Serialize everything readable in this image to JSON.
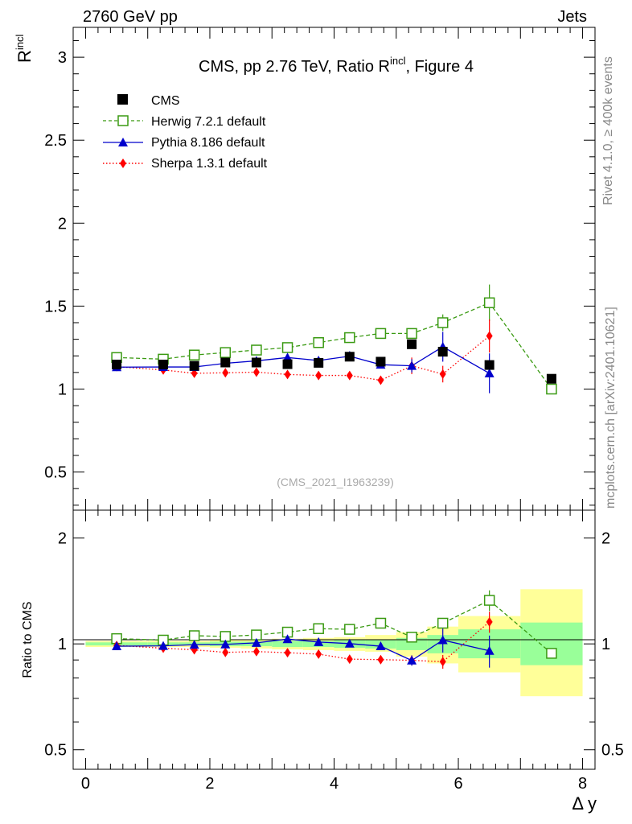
{
  "header": {
    "left": "2760 GeV pp",
    "right": "Jets"
  },
  "side_labels": {
    "rivet": "Rivet 4.1.0, ≥ 400k events",
    "mcplots": "mcplots.cern.ch [arXiv:2401.10621]"
  },
  "colors": {
    "cms": "#000000",
    "herwig": "#3a9a12",
    "pythia": "#0000cc",
    "sherpa": "#ff0000",
    "band_yellow": "#ffff99",
    "band_green": "#99ff99"
  },
  "chart_data": [
    {
      "type": "scatter",
      "panel": "main",
      "title": "CMS, pp 2.76 TeV, Ratio R",
      "title_sup": "incl",
      "title_suffix": ", Figure 4",
      "ylabel": "R",
      "ylabel_sup": "incl",
      "xlabel": "Δ y",
      "xlim": [
        -0.2,
        8.2
      ],
      "ylim": [
        0.27,
        3.18
      ],
      "yticks": [
        0.5,
        1,
        1.5,
        2,
        2.5,
        3
      ],
      "ytick_labels": [
        "0.5",
        "1",
        "1.5",
        "2",
        "2.5",
        "3"
      ],
      "watermark": "(CMS_2021_I1963239)",
      "legend_position": "top-left",
      "series": [
        {
          "name": "CMS",
          "key": "cms",
          "x": [
            0.5,
            1.25,
            1.75,
            2.25,
            2.75,
            3.25,
            3.75,
            4.25,
            4.75,
            5.25,
            5.75,
            6.5,
            7.5
          ],
          "y": [
            1.148,
            1.148,
            1.14,
            1.16,
            1.16,
            1.15,
            1.158,
            1.195,
            1.165,
            1.27,
            1.225,
            1.145,
            1.062
          ]
        },
        {
          "name": "Herwig 7.2.1 default",
          "key": "herwig",
          "x": [
            0.5,
            1.25,
            1.75,
            2.25,
            2.75,
            3.25,
            3.75,
            4.25,
            4.75,
            5.25,
            5.75,
            6.5,
            7.5
          ],
          "y": [
            1.19,
            1.18,
            1.205,
            1.22,
            1.235,
            1.25,
            1.28,
            1.31,
            1.335,
            1.335,
            1.4,
            1.52,
            1.0
          ],
          "err": [
            0,
            0,
            0,
            0,
            0,
            0,
            0,
            0,
            0,
            0,
            0.05,
            0.11,
            0
          ]
        },
        {
          "name": "Pythia 8.186 default",
          "key": "pythia",
          "x": [
            0.5,
            1.25,
            1.75,
            2.25,
            2.75,
            3.25,
            3.75,
            4.25,
            4.75,
            5.25,
            5.75,
            6.5
          ],
          "y": [
            1.132,
            1.133,
            1.133,
            1.155,
            1.17,
            1.19,
            1.172,
            1.198,
            1.147,
            1.14,
            1.255,
            1.095
          ],
          "err": [
            0,
            0,
            0,
            0,
            0,
            0,
            0,
            0.03,
            0.02,
            0.04,
            0.09,
            0.12
          ]
        },
        {
          "name": "Sherpa 1.3.1 default",
          "key": "sherpa",
          "x": [
            0.5,
            1.25,
            1.75,
            2.25,
            2.75,
            3.25,
            3.75,
            4.25,
            4.75,
            5.25,
            5.75,
            6.5
          ],
          "y": [
            1.135,
            1.115,
            1.095,
            1.098,
            1.102,
            1.088,
            1.082,
            1.082,
            1.053,
            1.14,
            1.09,
            1.32
          ],
          "err": [
            0,
            0,
            0,
            0,
            0,
            0,
            0,
            0,
            0,
            0.05,
            0.05,
            0.1
          ]
        }
      ]
    },
    {
      "type": "scatter",
      "panel": "ratio",
      "ylabel": "Ratio to CMS",
      "xlabel": "Δ y",
      "xlim": [
        -0.2,
        8.2
      ],
      "ylim": [
        0.44,
        2.4
      ],
      "yscale": "log",
      "yticks": [
        0.5,
        1,
        2
      ],
      "ytick_labels": [
        "0.5",
        "1",
        "2"
      ],
      "xticks": [
        0,
        2,
        4,
        6,
        8
      ],
      "xtick_labels": [
        "0",
        "2",
        "4",
        "6",
        "8"
      ],
      "bands": [
        {
          "x0": 0,
          "x1": 1.0,
          "yellow": [
            0.98,
            1.02
          ],
          "green": [
            0.99,
            1.01
          ]
        },
        {
          "x0": 1.0,
          "x1": 1.5,
          "yellow": [
            0.98,
            1.02
          ],
          "green": [
            0.99,
            1.01
          ]
        },
        {
          "x0": 1.5,
          "x1": 2.0,
          "yellow": [
            0.98,
            1.02
          ],
          "green": [
            0.99,
            1.01
          ]
        },
        {
          "x0": 2.0,
          "x1": 2.5,
          "yellow": [
            0.975,
            1.025
          ],
          "green": [
            0.985,
            1.015
          ]
        },
        {
          "x0": 2.5,
          "x1": 3.0,
          "yellow": [
            0.97,
            1.03
          ],
          "green": [
            0.985,
            1.015
          ]
        },
        {
          "x0": 3.0,
          "x1": 3.5,
          "yellow": [
            0.965,
            1.035
          ],
          "green": [
            0.98,
            1.02
          ]
        },
        {
          "x0": 3.5,
          "x1": 4.0,
          "yellow": [
            0.96,
            1.04
          ],
          "green": [
            0.98,
            1.02
          ]
        },
        {
          "x0": 4.0,
          "x1": 4.5,
          "yellow": [
            0.955,
            1.045
          ],
          "green": [
            0.975,
            1.025
          ]
        },
        {
          "x0": 4.5,
          "x1": 5.0,
          "yellow": [
            0.95,
            1.06
          ],
          "green": [
            0.97,
            1.03
          ]
        },
        {
          "x0": 5.0,
          "x1": 5.5,
          "yellow": [
            0.92,
            1.08
          ],
          "green": [
            0.96,
            1.04
          ]
        },
        {
          "x0": 5.5,
          "x1": 6.0,
          "yellow": [
            0.88,
            1.12
          ],
          "green": [
            0.94,
            1.06
          ]
        },
        {
          "x0": 6.0,
          "x1": 7.0,
          "yellow": [
            0.83,
            1.2
          ],
          "green": [
            0.91,
            1.1
          ]
        },
        {
          "x0": 7.0,
          "x1": 8.0,
          "yellow": [
            0.71,
            1.43
          ],
          "green": [
            0.87,
            1.15
          ]
        }
      ],
      "series": [
        {
          "name": "Herwig 7.2.1 default",
          "key": "herwig",
          "x": [
            0.5,
            1.25,
            1.75,
            2.25,
            2.75,
            3.25,
            3.75,
            4.25,
            4.75,
            5.25,
            5.75,
            6.5,
            7.5
          ],
          "y": [
            1.035,
            1.025,
            1.055,
            1.05,
            1.06,
            1.08,
            1.105,
            1.1,
            1.145,
            1.045,
            1.145,
            1.33,
            0.94
          ],
          "err": [
            0,
            0,
            0,
            0,
            0,
            0,
            0,
            0,
            0,
            0,
            0.04,
            0.09,
            0
          ]
        },
        {
          "name": "Pythia 8.186 default",
          "key": "pythia",
          "x": [
            0.5,
            1.25,
            1.75,
            2.25,
            2.75,
            3.25,
            3.75,
            4.25,
            4.75,
            5.25,
            5.75,
            6.5
          ],
          "y": [
            0.985,
            0.987,
            0.995,
            0.997,
            1.007,
            1.032,
            1.012,
            1.002,
            0.985,
            0.897,
            1.025,
            0.956
          ],
          "err": [
            0,
            0,
            0,
            0,
            0,
            0,
            0,
            0.02,
            0.02,
            0.03,
            0.08,
            0.1
          ]
        },
        {
          "name": "Sherpa 1.3.1 default",
          "key": "sherpa",
          "x": [
            0.5,
            1.25,
            1.75,
            2.25,
            2.75,
            3.25,
            3.75,
            4.25,
            4.75,
            5.25,
            5.75,
            6.5
          ],
          "y": [
            0.99,
            0.972,
            0.962,
            0.946,
            0.951,
            0.944,
            0.935,
            0.905,
            0.902,
            0.898,
            0.89,
            1.155
          ],
          "err": [
            0,
            0,
            0,
            0,
            0,
            0,
            0,
            0,
            0,
            0.03,
            0.04,
            0.08
          ]
        }
      ]
    }
  ]
}
